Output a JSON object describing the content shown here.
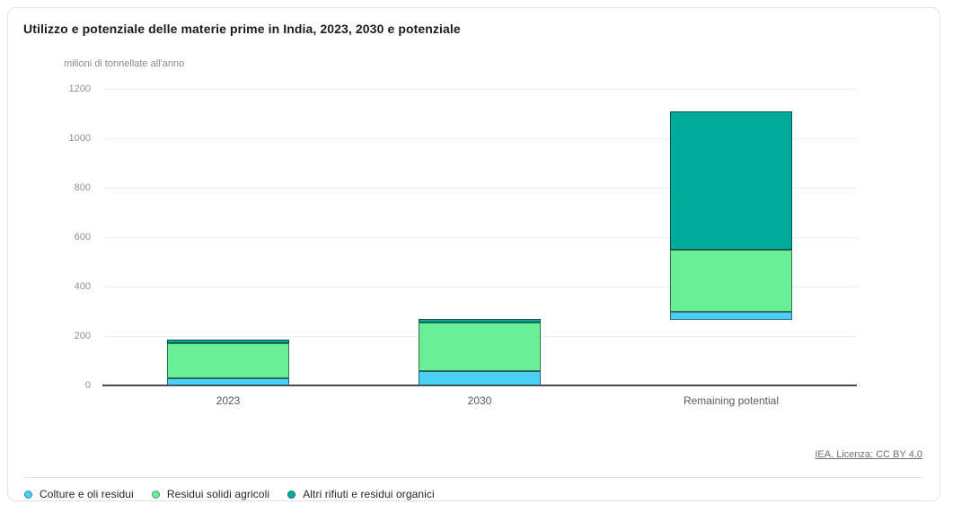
{
  "card": {
    "title": "Utilizzo e potenziale delle materie prime in India, 2023, 2030 e potenziale",
    "license_link": "IEA. Licenza: CC BY 4.0"
  },
  "chart_data": {
    "type": "bar",
    "variant": "stacked-waterfall",
    "title": "Utilizzo e potenziale delle materie prime in India, 2023, 2030 e potenziale",
    "unit_label": "milioni di tonnellate all'anno",
    "categories": [
      "2023",
      "2030",
      "Remaining potential"
    ],
    "series": [
      {
        "name": "Colture e oli residui",
        "color": "#4BCFF5",
        "values": [
          30,
          60,
          35
        ]
      },
      {
        "name": "Residui solidi agricoli",
        "color": "#69EF98",
        "values": [
          140,
          195,
          250
        ]
      },
      {
        "name": "Altri rifiuti e residui organici",
        "color": "#00AB9B",
        "values": [
          15,
          15,
          560
        ]
      }
    ],
    "base_offsets": [
      0,
      0,
      265
    ],
    "stack_totals": [
      185,
      270,
      1110
    ],
    "y_axis": {
      "label": "milioni di tonnellate all'anno",
      "min": 0,
      "max": 1200,
      "tick_interval": 200,
      "ticks": [
        0,
        200,
        400,
        600,
        800,
        1000,
        1200
      ]
    },
    "grid": true,
    "legend_position": "bottom",
    "colors": {
      "axis": "#4b4b4b",
      "gridline": "#ededed",
      "tick_text": "#8f8f8f",
      "category_text": "#595959"
    }
  }
}
